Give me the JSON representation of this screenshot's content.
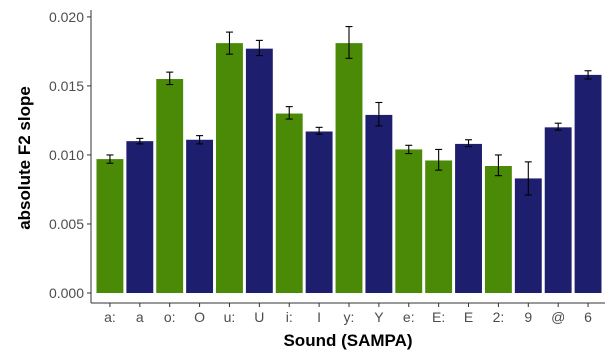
{
  "chart_data": {
    "type": "bar",
    "xlabel": "Sound (SAMPA)",
    "ylabel": "absolute F2 slope",
    "ylim": [
      0,
      0.0205
    ],
    "yticks": [
      "0.000",
      "0.005",
      "0.010",
      "0.015",
      "0.020"
    ],
    "ytick_values": [
      0,
      0.005,
      0.01,
      0.015,
      0.02
    ],
    "categories": [
      "a:",
      "a",
      "o:",
      "O",
      "u:",
      "U",
      "i:",
      "I",
      "y:",
      "Y",
      "e:",
      "E:",
      "E",
      "2:",
      "9",
      "@",
      "6"
    ],
    "values": [
      0.0097,
      0.011,
      0.0155,
      0.0111,
      0.0181,
      0.0177,
      0.013,
      0.0117,
      0.0181,
      0.0129,
      0.0104,
      0.0096,
      0.0108,
      0.0092,
      0.0083,
      0.012,
      0.0158
    ],
    "error_low": [
      0.0094,
      0.0108,
      0.0151,
      0.0108,
      0.0173,
      0.0172,
      0.0126,
      0.0115,
      0.017,
      0.0121,
      0.0101,
      0.0089,
      0.0106,
      0.0085,
      0.0071,
      0.0118,
      0.0155
    ],
    "error_high": [
      0.01,
      0.0112,
      0.016,
      0.0114,
      0.0189,
      0.0183,
      0.0135,
      0.012,
      0.0193,
      0.0138,
      0.0107,
      0.0104,
      0.0111,
      0.01,
      0.0095,
      0.0123,
      0.0161
    ],
    "bar_colors": [
      "#4a8a07",
      "#1e1e6e",
      "#4a8a07",
      "#1e1e6e",
      "#4a8a07",
      "#1e1e6e",
      "#4a8a07",
      "#1e1e6e",
      "#4a8a07",
      "#1e1e6e",
      "#4a8a07",
      "#4a8a07",
      "#1e1e6e",
      "#4a8a07",
      "#1e1e6e",
      "#1e1e6e",
      "#1e1e6e"
    ],
    "grid": false,
    "legend": "none"
  }
}
